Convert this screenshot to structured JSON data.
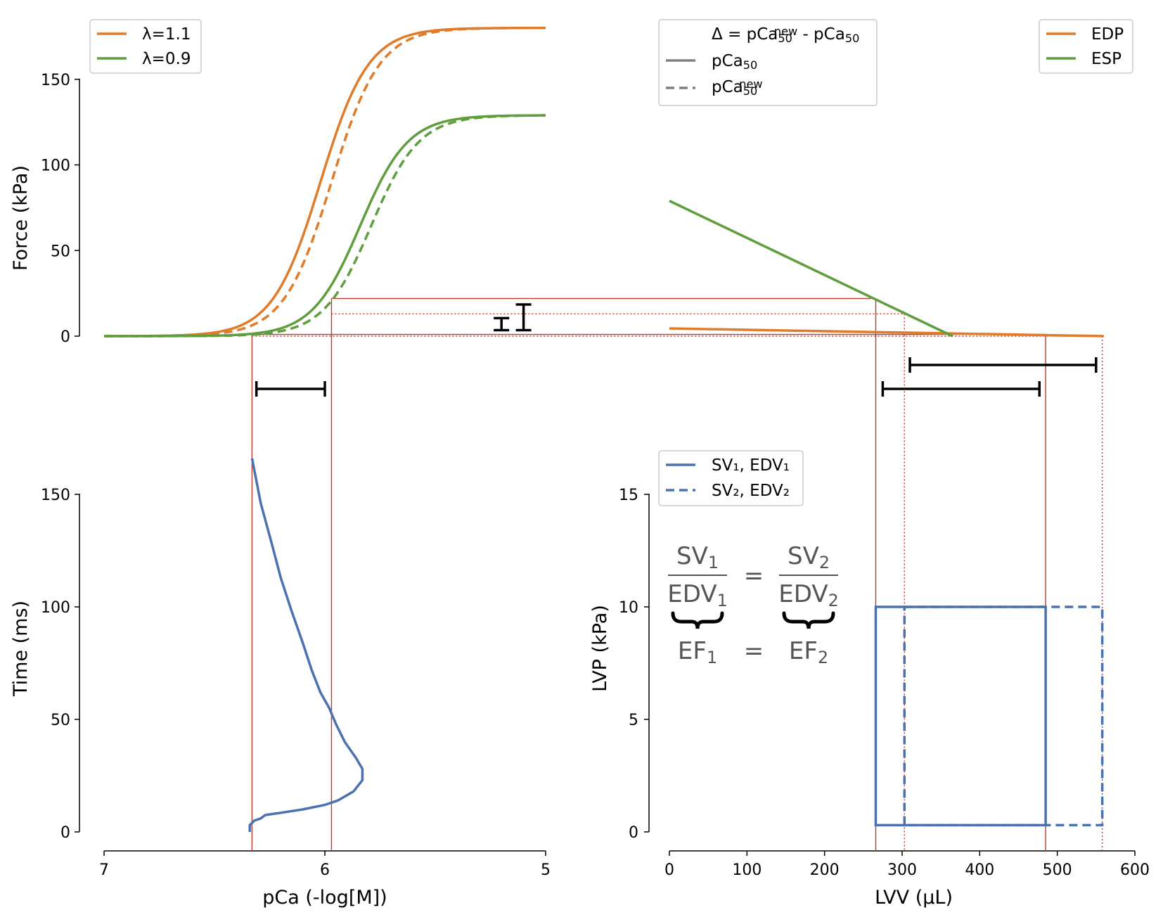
{
  "chart_data": [
    {
      "id": "force_pca",
      "type": "line",
      "xlabel": "",
      "ylabel": "Force (kPa)",
      "xlim": [
        7,
        5
      ],
      "ylim": [
        0,
        180
      ],
      "yticks": [
        "0",
        "50",
        "100",
        "150"
      ],
      "legend_position": "top-left",
      "series": [
        {
          "name": "λ=1.1",
          "style": "solid",
          "pCa50": 6.02,
          "hill": 4.0,
          "fmax": 180
        },
        {
          "name": "",
          "style": "dashed",
          "pCa50": 5.97,
          "hill": 4.0,
          "fmax": 180
        },
        {
          "name": "λ=0.9",
          "style": "solid",
          "pCa50": 5.84,
          "hill": 4.0,
          "fmax": 129
        },
        {
          "name": "",
          "style": "dashed",
          "pCa50": 5.79,
          "hill": 4.0,
          "fmax": 129
        }
      ],
      "annotations": {
        "pCa_bar": [
          6.31,
          6.0
        ],
        "force_bars": [
          [
            3.5,
            10.5
          ],
          [
            3.5,
            18.5
          ]
        ]
      }
    },
    {
      "id": "legend_pca50",
      "entries": [
        {
          "label": "Δ = pCa",
          "sub": "50",
          "sup": "new",
          "rest": " - pCa",
          "rest_sub": "50",
          "style": "none"
        },
        {
          "label": "pCa",
          "sub": "50",
          "style": "solid"
        },
        {
          "label": "pCa",
          "sub": "50",
          "sup": "new",
          "style": "dashed"
        }
      ]
    },
    {
      "id": "pressure_volume",
      "type": "line",
      "series": [
        {
          "name": "EDP",
          "points": [
            [
              0,
              4.5
            ],
            [
              560,
              0
            ]
          ]
        },
        {
          "name": "ESP",
          "points": [
            [
              0,
              79
            ],
            [
              365,
              0
            ]
          ]
        }
      ],
      "annotations": {
        "volume_bars": [
          [
            310,
            550
          ],
          [
            275,
            477
          ]
        ]
      }
    },
    {
      "id": "time_pca",
      "type": "line",
      "xlabel": "pCa (-log[M])",
      "ylabel": "Time (ms)",
      "xlim": [
        7,
        5
      ],
      "ylim": [
        0,
        165
      ],
      "xticks": [
        "7",
        "6",
        "5"
      ],
      "yticks": [
        "0",
        "50",
        "100",
        "150"
      ],
      "series": [
        {
          "name": "",
          "points": [
            [
              6.34,
              0
            ],
            [
              6.34,
              3
            ],
            [
              6.32,
              5
            ],
            [
              6.29,
              6
            ],
            [
              6.27,
              7.5
            ],
            [
              6.2,
              8.5
            ],
            [
              6.1,
              10
            ],
            [
              6.0,
              12
            ],
            [
              5.94,
              14
            ],
            [
              5.87,
              18
            ],
            [
              5.83,
              23
            ],
            [
              5.83,
              28
            ],
            [
              5.86,
              33
            ],
            [
              5.91,
              40
            ],
            [
              5.95,
              48
            ],
            [
              5.98,
              55
            ],
            [
              6.02,
              62
            ],
            [
              6.06,
              72
            ],
            [
              6.1,
              84
            ],
            [
              6.15,
              98
            ],
            [
              6.2,
              113
            ],
            [
              6.24,
              128
            ],
            [
              6.29,
              146
            ],
            [
              6.33,
              166
            ]
          ]
        }
      ]
    },
    {
      "id": "lvp_lvv",
      "type": "line",
      "xlabel": "LVV (µL)",
      "ylabel": "LVP (kPa)",
      "xlim": [
        0,
        600
      ],
      "ylim": [
        0,
        16.5
      ],
      "xticks": [
        "0",
        "100",
        "200",
        "300",
        "400",
        "500",
        "600"
      ],
      "yticks": [
        "0",
        "5",
        "10",
        "15"
      ],
      "series": [
        {
          "name": "SV₁, EDV₁",
          "style": "solid",
          "loop": [
            266,
            485,
            0.3,
            10.0
          ]
        },
        {
          "name": "SV₂, EDV₂",
          "style": "dashed",
          "loop": [
            303,
            558,
            0.3,
            10.0
          ]
        }
      ]
    }
  ],
  "equation": {
    "sv1": "SV",
    "sv1_sub": "1",
    "edv1": "EDV",
    "edv1_sub": "1",
    "sv2": "SV",
    "sv2_sub": "2",
    "edv2": "EDV",
    "edv2_sub": "2",
    "eq": "=",
    "ef1": "EF",
    "ef1_sub": "1",
    "ef2": "EF",
    "ef2_sub": "2"
  },
  "colors": {
    "orange": "#e07b2a",
    "green": "#5e9e3d",
    "blue": "#4a72b0",
    "red": "#c0392b",
    "gray": "#808080"
  }
}
